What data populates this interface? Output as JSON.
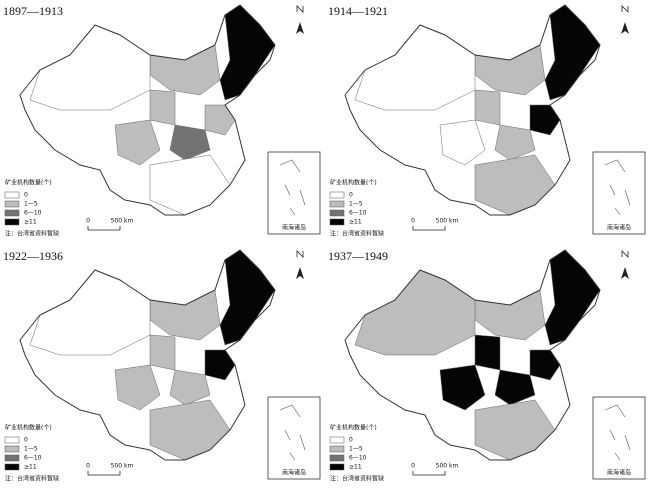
{
  "panels": [
    {
      "title": "1897—1913",
      "legend": {
        "title": "矿业机构数量(个)",
        "items": [
          "0",
          "1—5",
          "6—10",
          "≥11"
        ]
      },
      "note": "注：台湾省资料暂缺",
      "scale": {
        "zero": "0",
        "label": "500 km"
      },
      "inset_label": "南海诸岛"
    },
    {
      "title": "1914—1921",
      "legend": {
        "title": "矿业机构数量(个)",
        "items": [
          "0",
          "1—5",
          "6—10",
          "≥11"
        ]
      },
      "note": "注：台湾省资料暂缺",
      "scale": {
        "zero": "0",
        "label": "500 km"
      },
      "inset_label": "南海诸岛"
    },
    {
      "title": "1922—1936",
      "legend": {
        "title": "矿业机构数量(个)",
        "items": [
          "0",
          "1—5",
          "6—10",
          "≥11"
        ]
      },
      "note": "注：台湾省资料暂缺",
      "scale": {
        "zero": "0",
        "label": "500 km"
      },
      "inset_label": "南海诸岛"
    },
    {
      "title": "1937—1949",
      "legend": {
        "title": "矿业机构数量(个)",
        "items": [
          "0",
          "1—5",
          "6—10",
          "≥11"
        ]
      },
      "note": "注：台湾省资料暂缺",
      "scale": {
        "zero": "0",
        "label": "500 km"
      },
      "inset_label": "南海诸岛"
    }
  ]
}
